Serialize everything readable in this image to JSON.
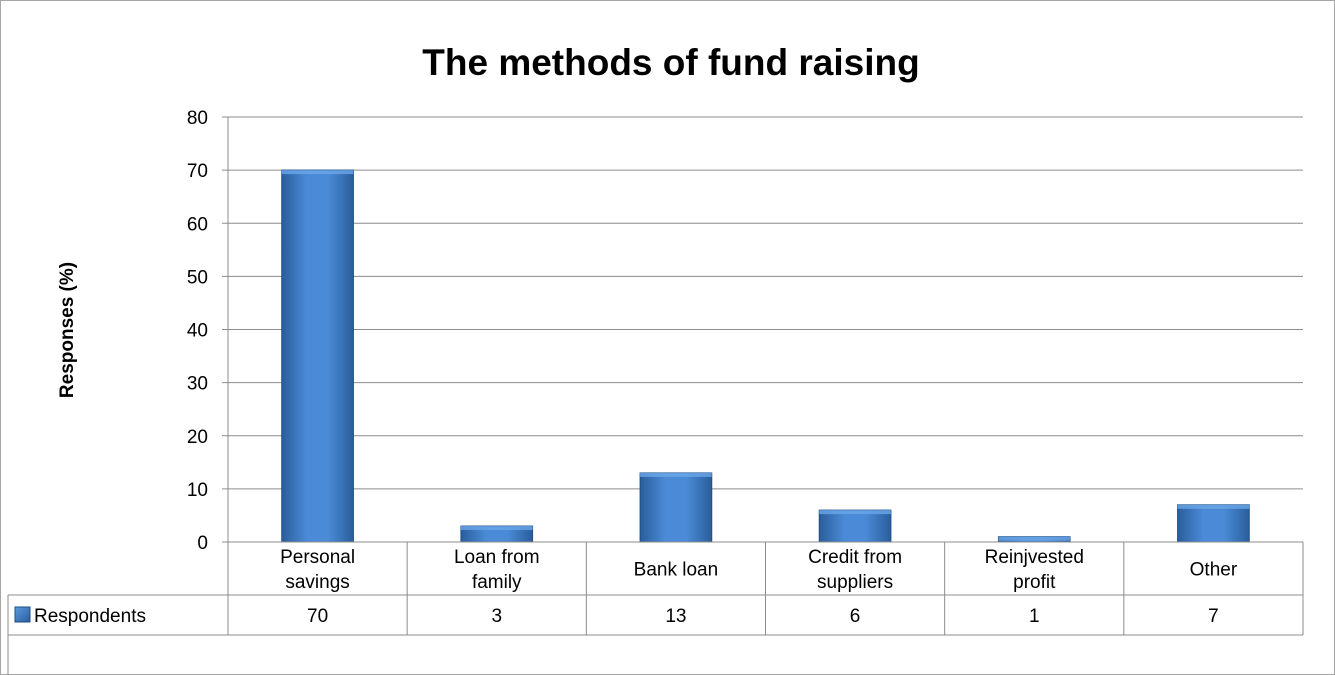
{
  "chart_data": {
    "type": "bar",
    "title": "The methods of fund raising",
    "xlabel": "",
    "ylabel": "Responses (%)",
    "ylim": [
      0,
      80
    ],
    "yticks": [
      0,
      10,
      20,
      30,
      40,
      50,
      60,
      70,
      80
    ],
    "grid": true,
    "categories": [
      [
        "Personal",
        "savings"
      ],
      [
        "Loan from",
        "family"
      ],
      [
        "Bank loan"
      ],
      [
        "Credit from",
        "suppliers"
      ],
      [
        "Reinjvested",
        "profit"
      ],
      [
        "Other"
      ]
    ],
    "series": [
      {
        "name": "Respondents",
        "values": [
          70,
          3,
          13,
          6,
          1,
          7
        ],
        "color": "#3c7cc4"
      }
    ],
    "data_table": true
  }
}
